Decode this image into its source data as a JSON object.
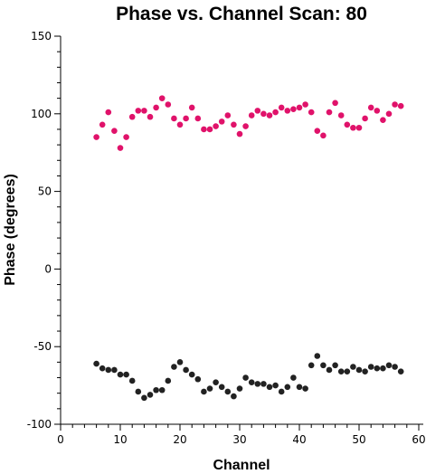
{
  "chart_data": {
    "type": "scatter",
    "title": "Phase vs. Channel Scan: 80",
    "xlabel": "Channel",
    "ylabel": "Phase (degrees)",
    "xlim": [
      0,
      60
    ],
    "ylim": [
      -100,
      150
    ],
    "xticks": [
      0,
      10,
      20,
      30,
      40,
      50,
      60
    ],
    "yticks": [
      -100,
      -50,
      0,
      50,
      100,
      150
    ],
    "xtick_labels": [
      "0",
      "10",
      "20",
      "30",
      "40",
      "50",
      "60"
    ],
    "ytick_labels": [
      "-100",
      "-50",
      "0",
      "50",
      "100",
      "150"
    ],
    "grid": false,
    "legend": "none",
    "series": [
      {
        "color": "#e0126a",
        "points": [
          [
            6,
            85
          ],
          [
            7,
            93
          ],
          [
            8,
            101
          ],
          [
            9,
            89
          ],
          [
            10,
            78
          ],
          [
            11,
            85
          ],
          [
            12,
            98
          ],
          [
            13,
            102
          ],
          [
            14,
            102
          ],
          [
            15,
            98
          ],
          [
            16,
            104
          ],
          [
            17,
            110
          ],
          [
            18,
            106
          ],
          [
            19,
            97
          ],
          [
            20,
            93
          ],
          [
            21,
            97
          ],
          [
            22,
            104
          ],
          [
            23,
            97
          ],
          [
            24,
            90
          ],
          [
            25,
            90
          ],
          [
            26,
            92
          ],
          [
            27,
            95
          ],
          [
            28,
            99
          ],
          [
            29,
            93
          ],
          [
            30,
            87
          ],
          [
            31,
            92
          ],
          [
            32,
            99
          ],
          [
            33,
            102
          ],
          [
            34,
            100
          ],
          [
            35,
            99
          ],
          [
            36,
            101
          ],
          [
            37,
            104
          ],
          [
            38,
            102
          ],
          [
            39,
            103
          ],
          [
            40,
            104
          ],
          [
            41,
            106
          ],
          [
            42,
            101
          ],
          [
            43,
            89
          ],
          [
            44,
            86
          ],
          [
            45,
            101
          ],
          [
            46,
            107
          ],
          [
            47,
            99
          ],
          [
            48,
            93
          ],
          [
            49,
            91
          ],
          [
            50,
            91
          ],
          [
            51,
            97
          ],
          [
            52,
            104
          ],
          [
            53,
            102
          ],
          [
            54,
            96
          ],
          [
            55,
            100
          ],
          [
            56,
            106
          ],
          [
            57,
            105
          ]
        ]
      },
      {
        "color": "#222222",
        "points": [
          [
            6,
            -61
          ],
          [
            7,
            -64
          ],
          [
            8,
            -65
          ],
          [
            9,
            -65
          ],
          [
            10,
            -68
          ],
          [
            11,
            -68
          ],
          [
            12,
            -72
          ],
          [
            13,
            -79
          ],
          [
            14,
            -83
          ],
          [
            15,
            -81
          ],
          [
            16,
            -78
          ],
          [
            17,
            -78
          ],
          [
            18,
            -72
          ],
          [
            19,
            -63
          ],
          [
            20,
            -60
          ],
          [
            21,
            -65
          ],
          [
            22,
            -68
          ],
          [
            23,
            -71
          ],
          [
            24,
            -79
          ],
          [
            25,
            -77
          ],
          [
            26,
            -73
          ],
          [
            27,
            -76
          ],
          [
            28,
            -79
          ],
          [
            29,
            -82
          ],
          [
            30,
            -77
          ],
          [
            31,
            -70
          ],
          [
            32,
            -73
          ],
          [
            33,
            -74
          ],
          [
            34,
            -74
          ],
          [
            35,
            -76
          ],
          [
            36,
            -75
          ],
          [
            37,
            -79
          ],
          [
            38,
            -76
          ],
          [
            39,
            -70
          ],
          [
            40,
            -76
          ],
          [
            41,
            -77
          ],
          [
            42,
            -62
          ],
          [
            43,
            -56
          ],
          [
            44,
            -62
          ],
          [
            45,
            -65
          ],
          [
            46,
            -62
          ],
          [
            47,
            -66
          ],
          [
            48,
            -66
          ],
          [
            49,
            -63
          ],
          [
            50,
            -65
          ],
          [
            51,
            -66
          ],
          [
            52,
            -63
          ],
          [
            53,
            -64
          ],
          [
            54,
            -64
          ],
          [
            55,
            -62
          ],
          [
            56,
            -63
          ],
          [
            57,
            -66
          ]
        ]
      }
    ]
  }
}
